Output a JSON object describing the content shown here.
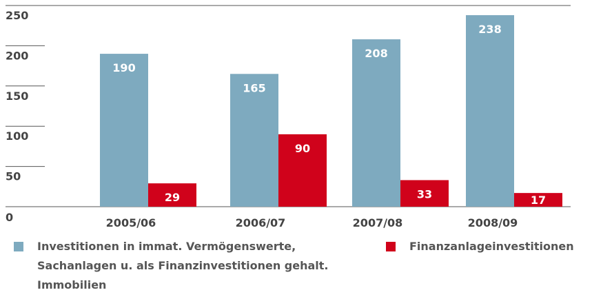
{
  "chart_data": {
    "type": "bar",
    "categories": [
      "2005/06",
      "2006/07",
      "2007/08",
      "2008/09"
    ],
    "series": [
      {
        "name": "Investitionen in immat. Vermögenswerte, Sachanlagen u. als Finanzinvestitionen gehalt. Immobilien",
        "color": "#7eaabf",
        "values": [
          190,
          165,
          208,
          238
        ]
      },
      {
        "name": "Finanzanlageinvestitionen",
        "color": "#d0021b",
        "values": [
          29,
          90,
          33,
          17
        ]
      }
    ],
    "ylim": [
      0,
      250
    ],
    "yticks": [
      0,
      50,
      100,
      150,
      200,
      250
    ]
  }
}
